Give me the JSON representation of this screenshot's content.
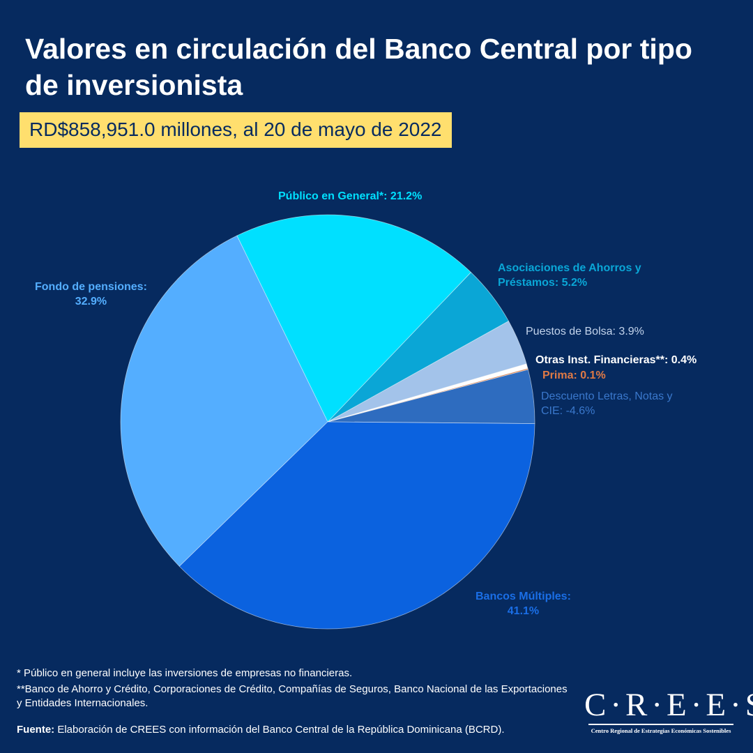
{
  "header": {
    "title": "Valores en circulación del Banco Central por tipo de inversionista",
    "subtitle_bold": "RD$858,951.0 millones",
    "subtitle_rest": ", al 20 de mayo de 2022"
  },
  "chart_data": {
    "type": "pie",
    "title": "Valores en circulación del Banco Central por tipo de inversionista",
    "unit": "%",
    "slices": [
      {
        "name": "Bancos Múltiples",
        "value": 41.1,
        "label_line1": "Bancos Múltiples:",
        "label_line2": "41.1%",
        "color": "#0b62df",
        "label_color": "#1a6ee6"
      },
      {
        "name": "Fondo de pensiones",
        "value": 32.9,
        "label_line1": "Fondo de pensiones:",
        "label_line2": "32.9%",
        "color": "#54aeff",
        "label_color": "#54aeff"
      },
      {
        "name": "Público en General*",
        "value": 21.2,
        "label_line1": "Público en General*: 21.2%",
        "label_line2": "",
        "color": "#00e0ff",
        "label_color": "#00e0ff"
      },
      {
        "name": "Asociaciones de Ahorros y Préstamos",
        "value": 5.2,
        "label_line1": "Asociaciones de Ahorros y",
        "label_line2": "Préstamos: 5.2%",
        "color": "#0aa6d6",
        "label_color": "#0aa6d6"
      },
      {
        "name": "Puestos de Bolsa",
        "value": 3.9,
        "label_line1": "Puestos de Bolsa: 3.9%",
        "label_line2": "",
        "color": "#a3c3ea",
        "label_color": "#c3d4ec"
      },
      {
        "name": "Otras Inst. Financieras**",
        "value": 0.4,
        "label_line1": "Otras Inst. Financieras**: 0.4%",
        "label_line2": "",
        "color": "#ffffff",
        "label_color": "#ffffff"
      },
      {
        "name": "Prima",
        "value": 0.1,
        "label_line1": "Prima: 0.1%",
        "label_line2": "",
        "color": "#d9814f",
        "label_color": "#e07a45"
      },
      {
        "name": "Descuento Letras, Notas y CIE",
        "value": -4.6,
        "label_line1": "Descuento Letras, Notas y",
        "label_line2": "CIE: -4.6%",
        "color": "#2e6cbf",
        "label_color": "#3a78cc"
      }
    ]
  },
  "footnotes": {
    "note1": "* Público en general incluye las inversiones de empresas no financieras.",
    "note2": "**Banco de Ahorro y Crédito, Corporaciones de Crédito, Compañías de Seguros, Banco Nacional de las Exportaciones y Entidades Internacionales.",
    "source_label": "Fuente:",
    "source_text": " Elaboración de CREES con información del Banco Central de la República Dominicana (BCRD)."
  },
  "logo": {
    "name": "C·R·E·E·S",
    "tagline": "Centro Regional de Estrategias Económicas Sostenibles"
  },
  "colors": {
    "background": "#062a5f",
    "highlight": "#ffdf6e"
  }
}
